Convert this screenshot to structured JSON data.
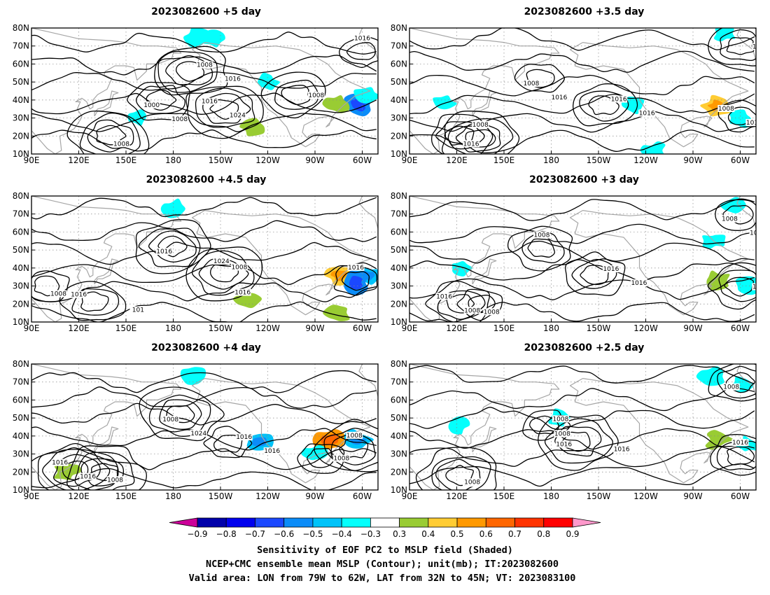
{
  "panels": [
    {
      "title": "2023082600  +5 day",
      "contour_labels": [
        "1000",
        "1008",
        "1016",
        "1008",
        "1016",
        "1008",
        "1008",
        "1016",
        "1024",
        "1008"
      ],
      "shading": [
        {
          "lon": 195,
          "lat": 75,
          "value": -0.4
        },
        {
          "lon": 205,
          "lat": 74,
          "value": -0.3
        },
        {
          "lon": 298,
          "lat": 37,
          "value": -0.6
        },
        {
          "lon": 303,
          "lat": 42,
          "value": -0.4
        },
        {
          "lon": 284,
          "lat": 38,
          "value": 0.4
        },
        {
          "lon": 240,
          "lat": 50,
          "value": -0.3
        },
        {
          "lon": 157,
          "lat": 30,
          "value": -0.3
        },
        {
          "lon": 230,
          "lat": 25,
          "value": 0.4
        }
      ],
      "centers": [
        {
          "lon": 172,
          "lat": 40
        },
        {
          "lon": 190,
          "lat": 56
        },
        {
          "lon": 213,
          "lat": 35
        },
        {
          "lon": 140,
          "lat": 20
        },
        {
          "lon": 300,
          "lat": 67
        },
        {
          "lon": 258,
          "lat": 43
        }
      ]
    },
    {
      "title": "2023082600  +3.5 day",
      "contour_labels": [
        "1008",
        "1016",
        "1008",
        "1016",
        "1008",
        "1016",
        "1016",
        "1016",
        "1016"
      ],
      "shading": [
        {
          "lon": 285,
          "lat": 37,
          "value": 0.5
        },
        {
          "lon": 300,
          "lat": 30,
          "value": -0.4
        },
        {
          "lon": 232,
          "lat": 37,
          "value": -0.3
        },
        {
          "lon": 290,
          "lat": 77,
          "value": -0.3
        },
        {
          "lon": 245,
          "lat": 12,
          "value": -0.3
        },
        {
          "lon": 112,
          "lat": 38,
          "value": -0.3
        }
      ],
      "centers": [
        {
          "lon": 173,
          "lat": 52
        },
        {
          "lon": 213,
          "lat": 37
        },
        {
          "lon": 301,
          "lat": 31
        },
        {
          "lon": 122,
          "lat": 20
        },
        {
          "lon": 135,
          "lat": 19
        },
        {
          "lon": 300,
          "lat": 70
        }
      ]
    },
    {
      "title": "2023082600  +4.5 day",
      "contour_labels": [
        "1016",
        "1008",
        "1016",
        "1008",
        "1016",
        "1024",
        "1016",
        "101"
      ],
      "shading": [
        {
          "lon": 285,
          "lat": 36,
          "value": 0.5
        },
        {
          "lon": 303,
          "lat": 36,
          "value": -0.5
        },
        {
          "lon": 296,
          "lat": 32,
          "value": -0.6
        },
        {
          "lon": 180,
          "lat": 73,
          "value": -0.4
        },
        {
          "lon": 284,
          "lat": 15,
          "value": 0.4
        },
        {
          "lon": 227,
          "lat": 23,
          "value": 0.4
        }
      ],
      "centers": [
        {
          "lon": 180,
          "lat": 52
        },
        {
          "lon": 212,
          "lat": 37
        },
        {
          "lon": 130,
          "lat": 21
        },
        {
          "lon": 100,
          "lat": 30
        },
        {
          "lon": 296,
          "lat": 33
        }
      ]
    },
    {
      "title": "2023082600  +3 day",
      "contour_labels": [
        "1008",
        "1016",
        "1016",
        "1008",
        "1008",
        "1016",
        "1016",
        "1016",
        "1008"
      ],
      "shading": [
        {
          "lon": 295,
          "lat": 75,
          "value": -0.3
        },
        {
          "lon": 305,
          "lat": 30,
          "value": -0.4
        },
        {
          "lon": 285,
          "lat": 33,
          "value": 0.4
        },
        {
          "lon": 283,
          "lat": 55,
          "value": -0.3
        },
        {
          "lon": 122,
          "lat": 40,
          "value": -0.3
        }
      ],
      "centers": [
        {
          "lon": 299,
          "lat": 70
        },
        {
          "lon": 208,
          "lat": 36
        },
        {
          "lon": 122,
          "lat": 20
        },
        {
          "lon": 135,
          "lat": 20
        },
        {
          "lon": 174,
          "lat": 51
        },
        {
          "lon": 300,
          "lat": 30
        }
      ]
    },
    {
      "title": "2023082600  +4 day",
      "contour_labels": [
        "1008",
        "1016",
        "1016",
        "1008",
        "1008",
        "1008",
        "1024",
        "1016",
        "1016",
        "1008"
      ],
      "shading": [
        {
          "lon": 280,
          "lat": 38,
          "value": 0.6
        },
        {
          "lon": 297,
          "lat": 38,
          "value": -0.5
        },
        {
          "lon": 234,
          "lat": 37,
          "value": -0.5
        },
        {
          "lon": 192,
          "lat": 74,
          "value": -0.4
        },
        {
          "lon": 270,
          "lat": 30,
          "value": -0.3
        },
        {
          "lon": 112,
          "lat": 20,
          "value": 0.4
        }
      ],
      "centers": [
        {
          "lon": 184,
          "lat": 52
        },
        {
          "lon": 215,
          "lat": 36
        },
        {
          "lon": 118,
          "lat": 21
        },
        {
          "lon": 136,
          "lat": 20
        },
        {
          "lon": 295,
          "lat": 33
        },
        {
          "lon": 274,
          "lat": 28
        }
      ]
    },
    {
      "title": "2023082600  +2.5 day",
      "contour_labels": [
        "1008",
        "1008",
        "1008",
        "1000",
        "1016",
        "1016",
        "1016",
        "1016",
        "1008",
        "1016"
      ],
      "shading": [
        {
          "lon": 282,
          "lat": 73,
          "value": -0.4
        },
        {
          "lon": 300,
          "lat": 68,
          "value": -0.3
        },
        {
          "lon": 185,
          "lat": 50,
          "value": -0.3
        },
        {
          "lon": 305,
          "lat": 35,
          "value": -0.3
        },
        {
          "lon": 286,
          "lat": 38,
          "value": 0.4
        },
        {
          "lon": 120,
          "lat": 46,
          "value": -0.3
        }
      ],
      "centers": [
        {
          "lon": 300,
          "lat": 70
        },
        {
          "lon": 176,
          "lat": 46
        },
        {
          "lon": 197,
          "lat": 37
        },
        {
          "lon": 122,
          "lat": 18
        },
        {
          "lon": 300,
          "lat": 29
        }
      ]
    }
  ],
  "axes": {
    "lon_range": [
      90,
      310
    ],
    "lat_range": [
      10,
      80
    ],
    "lon_ticks": [
      {
        "v": 90,
        "label": "90E"
      },
      {
        "v": 120,
        "label": "120E"
      },
      {
        "v": 150,
        "label": "150E"
      },
      {
        "v": 180,
        "label": "180"
      },
      {
        "v": 210,
        "label": "150W"
      },
      {
        "v": 240,
        "label": "120W"
      },
      {
        "v": 270,
        "label": "90W"
      },
      {
        "v": 300,
        "label": "60W"
      }
    ],
    "lat_ticks": [
      {
        "v": 10,
        "label": "10N"
      },
      {
        "v": 20,
        "label": "20N"
      },
      {
        "v": 30,
        "label": "30N"
      },
      {
        "v": 40,
        "label": "40N"
      },
      {
        "v": 50,
        "label": "50N"
      },
      {
        "v": 60,
        "label": "60N"
      },
      {
        "v": 70,
        "label": "70N"
      },
      {
        "v": 80,
        "label": "80N"
      }
    ]
  },
  "colorbar": {
    "colors": [
      "#cc0099",
      "#0000aa",
      "#0000ee",
      "#1b48ff",
      "#0b8cf8",
      "#00c3f9",
      "#05fffc",
      "#ffffff",
      "#99cc33",
      "#ffcc33",
      "#ff9900",
      "#ff6600",
      "#ff3300",
      "#ff0000",
      "#ff99cc"
    ],
    "labels": [
      "−0.9",
      "−0.8",
      "−0.7",
      "−0.6",
      "−0.5",
      "−0.4",
      "−0.3",
      "0.3",
      "0.4",
      "0.5",
      "0.6",
      "0.7",
      "0.8",
      "0.9"
    ]
  },
  "caption": {
    "line1": "Sensitivity of EOF PC2 to MSLP field (Shaded)",
    "line2": "NCEP+CMC ensemble mean MSLP (Contour); unit(mb); IT:2023082600",
    "line3": "Valid area: LON from 79W to 62W, LAT from 32N to 45N; VT: 2023083100"
  }
}
